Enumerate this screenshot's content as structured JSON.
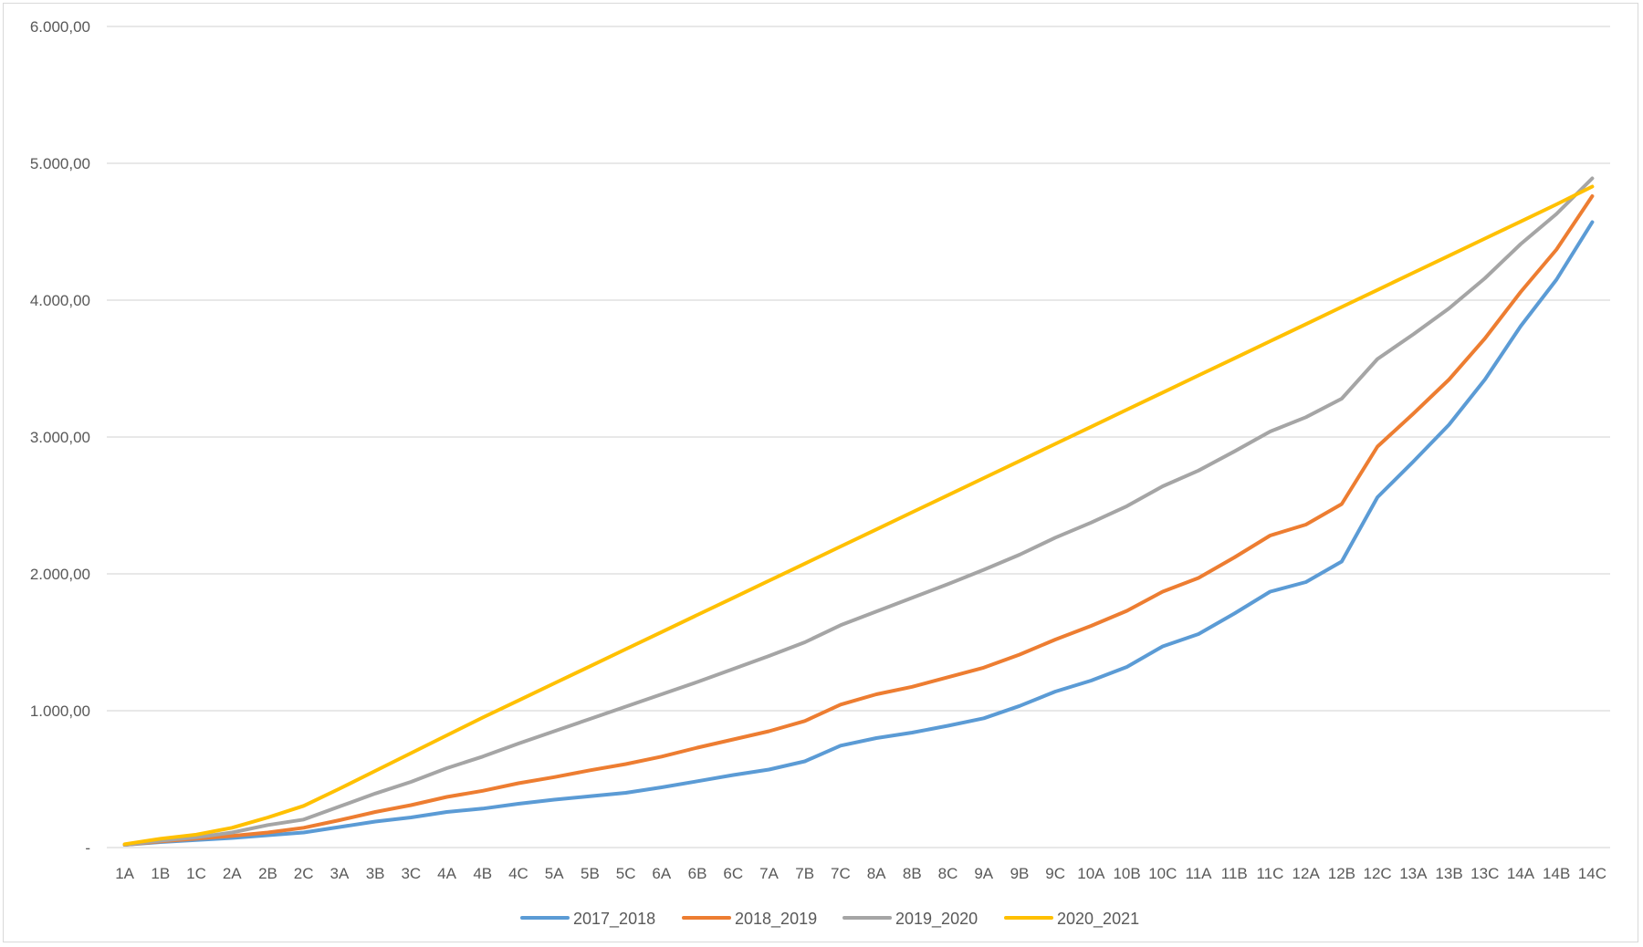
{
  "chart_data": {
    "type": "line",
    "title": "",
    "xlabel": "",
    "ylabel": "",
    "ylim": [
      0,
      6000
    ],
    "grid": true,
    "legend_position": "bottom",
    "y_tick_values": [
      0,
      1000,
      2000,
      3000,
      4000,
      5000,
      6000
    ],
    "y_tick_labels": [
      "-",
      "1.000,00",
      "2.000,00",
      "3.000,00",
      "4.000,00",
      "5.000,00",
      "6.000,00"
    ],
    "categories": [
      "1A",
      "1B",
      "1C",
      "2A",
      "2B",
      "2C",
      "3A",
      "3B",
      "3C",
      "4A",
      "4B",
      "4C",
      "5A",
      "5B",
      "5C",
      "6A",
      "6B",
      "6C",
      "7A",
      "7B",
      "7C",
      "8A",
      "8B",
      "8C",
      "9A",
      "9B",
      "9C",
      "10A",
      "10B",
      "10C",
      "11A",
      "11B",
      "11C",
      "12A",
      "12B",
      "12C",
      "13A",
      "13B",
      "13C",
      "14A",
      "14B",
      "14C"
    ],
    "series": [
      {
        "name": "2017_2018",
        "color": "#5b9bd5",
        "values": [
          20,
          40,
          55,
          70,
          90,
          110,
          150,
          190,
          220,
          260,
          285,
          320,
          350,
          375,
          400,
          440,
          485,
          530,
          570,
          630,
          745,
          800,
          840,
          890,
          945,
          1035,
          1140,
          1220,
          1320,
          1470,
          1560,
          1710,
          1870,
          1940,
          2090,
          2560,
          2820,
          3090,
          3420,
          3810,
          4150,
          4570
        ]
      },
      {
        "name": "2018_2019",
        "color": "#ed7d31",
        "values": [
          20,
          45,
          65,
          85,
          110,
          145,
          200,
          260,
          310,
          370,
          415,
          470,
          515,
          565,
          610,
          665,
          730,
          790,
          850,
          925,
          1045,
          1120,
          1175,
          1245,
          1315,
          1410,
          1520,
          1620,
          1730,
          1870,
          1970,
          2120,
          2280,
          2360,
          2510,
          2930,
          3170,
          3420,
          3720,
          4060,
          4370,
          4760
        ]
      },
      {
        "name": "2019_2020",
        "color": "#a5a5a5",
        "values": [
          20,
          50,
          75,
          110,
          165,
          205,
          300,
          395,
          480,
          580,
          665,
          760,
          850,
          940,
          1030,
          1120,
          1210,
          1305,
          1400,
          1500,
          1625,
          1725,
          1825,
          1925,
          2030,
          2140,
          2265,
          2375,
          2495,
          2640,
          2755,
          2895,
          3040,
          3145,
          3280,
          3570,
          3750,
          3940,
          4160,
          4410,
          4630,
          4890
        ]
      },
      {
        "name": "2020_2021",
        "color": "#ffc000",
        "values": [
          25,
          65,
          95,
          145,
          220,
          305,
          430,
          560,
          690,
          820,
          950,
          1075,
          1200,
          1325,
          1450,
          1575,
          1700,
          1825,
          1950,
          2075,
          2200,
          2325,
          2450,
          2575,
          2700,
          2825,
          2950,
          3075,
          3200,
          3325,
          3450,
          3575,
          3700,
          3825,
          3950,
          4075,
          4200,
          4325,
          4450,
          4575,
          4700,
          4830
        ]
      }
    ]
  }
}
